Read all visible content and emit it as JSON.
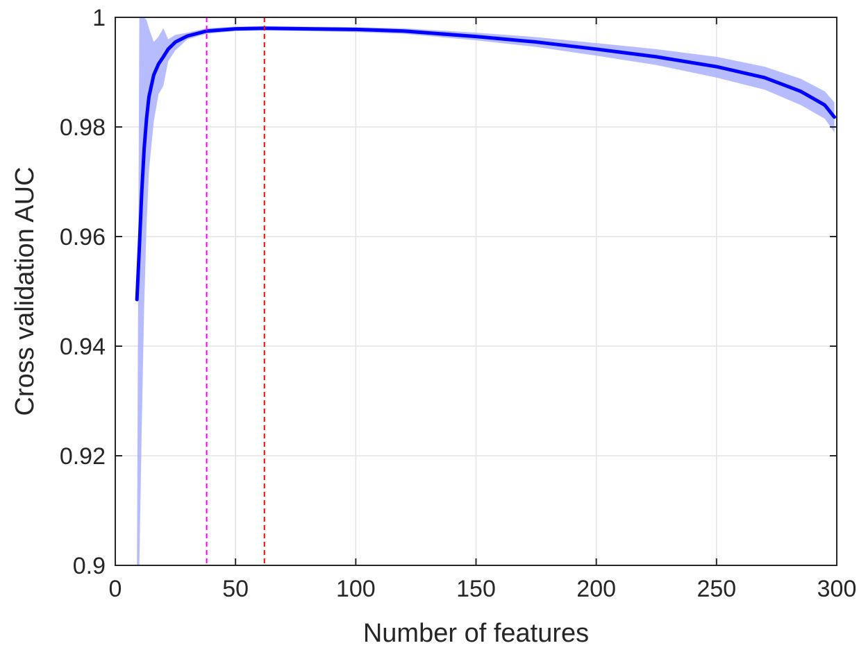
{
  "chart_data": {
    "type": "line",
    "title": "",
    "xlabel": "Number of features",
    "ylabel": "Cross validation AUC",
    "xlim": [
      0,
      300
    ],
    "ylim": [
      0.9,
      1.0
    ],
    "xticks": [
      0,
      50,
      100,
      150,
      200,
      250,
      300
    ],
    "xtick_labels": [
      "0",
      "50",
      "100",
      "150",
      "200",
      "250",
      "300"
    ],
    "yticks": [
      0.9,
      0.92,
      0.94,
      0.96,
      0.98,
      1.0
    ],
    "ytick_labels": [
      "0.9",
      "0.92",
      "0.94",
      "0.96",
      "0.98",
      "1"
    ],
    "grid": true,
    "series": [
      {
        "color": "#0000ff",
        "x": [
          9,
          10,
          11,
          12,
          13,
          14,
          16,
          18,
          20,
          22,
          25,
          30,
          38,
          50,
          62,
          80,
          100,
          120,
          150,
          175,
          200,
          225,
          250,
          270,
          285,
          295,
          299
        ],
        "y": [
          0.9485,
          0.958,
          0.968,
          0.976,
          0.9815,
          0.9855,
          0.9895,
          0.9915,
          0.9928,
          0.9942,
          0.9955,
          0.9966,
          0.9975,
          0.9979,
          0.998,
          0.9979,
          0.9978,
          0.9975,
          0.9965,
          0.9955,
          0.9942,
          0.9928,
          0.991,
          0.989,
          0.9865,
          0.984,
          0.9818
        ],
        "band_upper": [
          0.9,
          1.0,
          1.0,
          1.0,
          0.9995,
          0.998,
          0.9955,
          0.9965,
          0.998,
          0.996,
          0.9968,
          0.9972,
          0.998,
          0.9983,
          0.9984,
          0.9983,
          0.9982,
          0.998,
          0.9972,
          0.9964,
          0.9953,
          0.9942,
          0.9928,
          0.991,
          0.9888,
          0.9865,
          0.9845
        ],
        "band_lower": [
          0.9,
          0.9,
          0.925,
          0.947,
          0.962,
          0.972,
          0.981,
          0.986,
          0.9875,
          0.992,
          0.994,
          0.996,
          0.997,
          0.9975,
          0.9976,
          0.9975,
          0.9973,
          0.997,
          0.9958,
          0.9946,
          0.993,
          0.9913,
          0.989,
          0.9868,
          0.984,
          0.9815,
          0.979
        ]
      }
    ],
    "reference_lines": [
      {
        "x": 38,
        "color": "#ff00ff",
        "style": "dashed"
      },
      {
        "x": 62,
        "color": "#ff0000",
        "style": "dashed"
      }
    ]
  }
}
